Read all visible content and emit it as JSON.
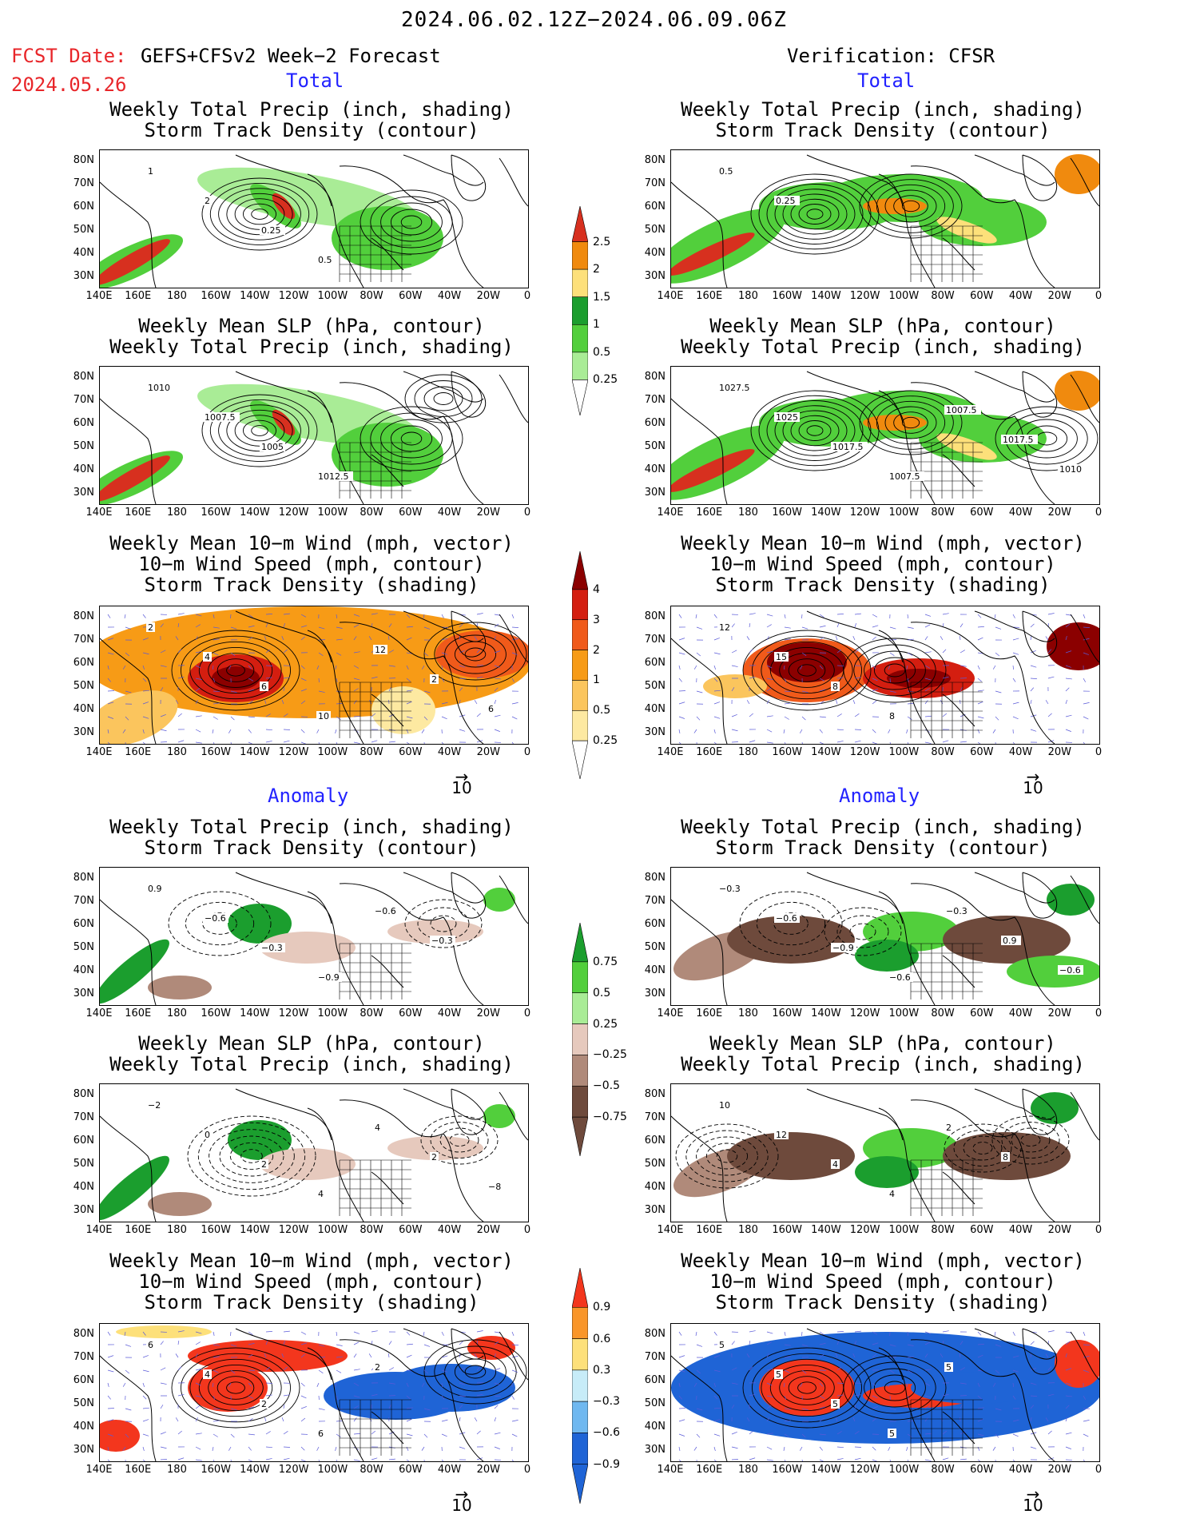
{
  "header": {
    "date_range": "2024.06.02.12Z−2024.06.09.06Z",
    "fcst_label": "FCST Date:",
    "forecast_name": "GEFS+CFSv2 Week−2 Forecast",
    "fcst_date": "2024.05.26",
    "verification": "Verification: CFSR"
  },
  "sections": {
    "total": "Total",
    "anomaly": "Anomaly"
  },
  "panel_titles": {
    "precip_storm": [
      "Weekly Total Precip (inch, shading)",
      "Storm Track Density (contour)"
    ],
    "slp_precip": [
      "Weekly Mean SLP (hPa, contour)",
      "Weekly Total Precip (inch, shading)"
    ],
    "wind": [
      "Weekly Mean 10−m Wind (mph, vector)",
      "10−m Wind Speed (mph, contour)",
      "Storm Track Density (shading)"
    ]
  },
  "axes": {
    "lat_ticks": [
      "80N",
      "70N",
      "60N",
      "50N",
      "40N",
      "30N"
    ],
    "lon_ticks": [
      "140E",
      "160E",
      "180",
      "160W",
      "140W",
      "120W",
      "100W",
      "80W",
      "60W",
      "40W",
      "20W",
      "0"
    ]
  },
  "vector_reference": "10",
  "colorbars": {
    "precip_total": {
      "labels": [
        "2.5",
        "2",
        "1.5",
        "1",
        "0.5",
        "0.25"
      ],
      "colors": [
        "#d7301f",
        "#f08a0e",
        "#fde07a",
        "#1b9e2e",
        "#52cf3c",
        "#a9ec96"
      ]
    },
    "storm_total": {
      "labels": [
        "4",
        "3",
        "2",
        "1",
        "0.5",
        "0.25"
      ],
      "colors": [
        "#8b0000",
        "#d41e10",
        "#f05a1a",
        "#f79b16",
        "#fbc55d",
        "#fde9a1"
      ]
    },
    "precip_anom": {
      "labels": [
        "0.75",
        "0.5",
        "0.25",
        "−0.25",
        "−0.5",
        "−0.75"
      ],
      "colors": [
        "#1b9e2e",
        "#52cf3c",
        "#a9ec96",
        "#e6c9bd",
        "#b08a7a",
        "#6e4a3c"
      ]
    },
    "storm_anom": {
      "labels": [
        "0.9",
        "0.6",
        "0.3",
        "−0.3",
        "−0.6",
        "−0.9"
      ],
      "colors": [
        "#f3361d",
        "#f9962a",
        "#fde07a",
        "#c7ecf8",
        "#6fb8f0",
        "#1f64d6"
      ]
    }
  },
  "contour_labels": {
    "p1": [
      "1",
      "2",
      "0.25",
      "0.5"
    ],
    "p2": [
      "1010",
      "1007.5",
      "1005",
      "1012.5"
    ],
    "p3": [
      "2",
      "4",
      "6",
      "10",
      "12",
      "2",
      "6"
    ],
    "p4": [
      "0.5",
      "0.25"
    ],
    "p5": [
      "1027.5",
      "1025",
      "1017.5",
      "1007.5",
      "1007.5",
      "1017.5",
      "1010"
    ],
    "p6": [
      "12",
      "15",
      "8",
      "8"
    ],
    "p7": [
      "0.9",
      "−0.6",
      "−0.3",
      "−0.9",
      "−0.6",
      "−0.3"
    ],
    "p8": [
      "−2",
      "0",
      "2",
      "4",
      "4",
      "2",
      "−8"
    ],
    "p9": [
      "6",
      "4",
      "2",
      "6",
      "2"
    ],
    "p10": [
      "−0.3",
      "−0.6",
      "−0.9",
      "−0.6",
      "−0.3",
      "0.9",
      "−0.6"
    ],
    "p11": [
      "10",
      "12",
      "4",
      "4",
      "2",
      "8"
    ],
    "p12": [
      "5",
      "5",
      "5",
      "5",
      "5"
    ]
  }
}
